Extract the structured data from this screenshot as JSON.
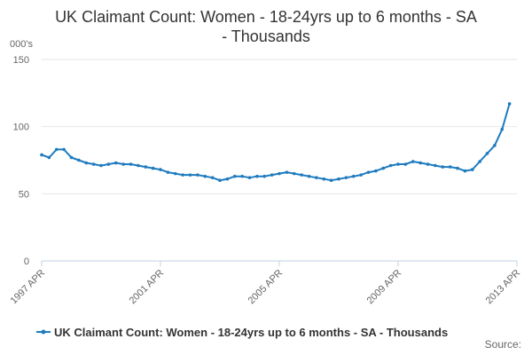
{
  "chart_data": {
    "type": "line",
    "title_line1": "UK Claimant Count: Women - 18-24yrs up to 6 months - SA",
    "title_line2": "- Thousands",
    "ylabel": "000's",
    "xlabel": "",
    "x_tick_labels": [
      "1997 APR",
      "2001 APR",
      "2005 APR",
      "2009 APR",
      "2013 APR"
    ],
    "y_tick_labels": [
      "0",
      "50",
      "100",
      "150"
    ],
    "ylim": [
      0,
      150
    ],
    "y_ticks": [
      0,
      50,
      100,
      150
    ],
    "x_range": [
      "1997-04",
      "2013-04"
    ],
    "grid": "horizontal",
    "legend_position": "bottom",
    "source_label": "Source:",
    "series": [
      {
        "name": "UK Claimant Count: Women - 18-24yrs up to 6 months - SA - Thousands",
        "color": "#1f7bbf",
        "points": [
          [
            "1997-04",
            79
          ],
          [
            "1997-07",
            77
          ],
          [
            "1997-10",
            83
          ],
          [
            "1998-01",
            83
          ],
          [
            "1998-04",
            77
          ],
          [
            "1998-07",
            75
          ],
          [
            "1998-10",
            73
          ],
          [
            "1999-01",
            72
          ],
          [
            "1999-04",
            71
          ],
          [
            "1999-07",
            72
          ],
          [
            "1999-10",
            73
          ],
          [
            "2000-01",
            72
          ],
          [
            "2000-04",
            72
          ],
          [
            "2000-07",
            71
          ],
          [
            "2000-10",
            70
          ],
          [
            "2001-01",
            69
          ],
          [
            "2001-04",
            68
          ],
          [
            "2001-07",
            66
          ],
          [
            "2001-10",
            65
          ],
          [
            "2002-01",
            64
          ],
          [
            "2002-04",
            64
          ],
          [
            "2002-07",
            64
          ],
          [
            "2002-10",
            63
          ],
          [
            "2003-01",
            62
          ],
          [
            "2003-04",
            60
          ],
          [
            "2003-07",
            61
          ],
          [
            "2003-10",
            63
          ],
          [
            "2004-01",
            63
          ],
          [
            "2004-04",
            62
          ],
          [
            "2004-07",
            63
          ],
          [
            "2004-10",
            63
          ],
          [
            "2005-01",
            64
          ],
          [
            "2005-04",
            65
          ],
          [
            "2005-07",
            66
          ],
          [
            "2005-10",
            65
          ],
          [
            "2006-01",
            64
          ],
          [
            "2006-04",
            63
          ],
          [
            "2006-07",
            62
          ],
          [
            "2006-10",
            61
          ],
          [
            "2007-01",
            60
          ],
          [
            "2007-04",
            61
          ],
          [
            "2007-07",
            62
          ],
          [
            "2007-10",
            63
          ],
          [
            "2008-01",
            64
          ],
          [
            "2008-04",
            66
          ],
          [
            "2008-07",
            67
          ],
          [
            "2008-10",
            69
          ],
          [
            "2009-01",
            71
          ],
          [
            "2009-04",
            72
          ],
          [
            "2009-07",
            72
          ],
          [
            "2009-10",
            74
          ],
          [
            "2010-01",
            73
          ],
          [
            "2010-04",
            72
          ],
          [
            "2010-07",
            71
          ],
          [
            "2010-10",
            70
          ],
          [
            "2011-01",
            70
          ],
          [
            "2011-04",
            69
          ],
          [
            "2011-07",
            67
          ],
          [
            "2011-10",
            68
          ],
          [
            "2012-01",
            74
          ],
          [
            "2012-04",
            80
          ],
          [
            "2012-07",
            86
          ],
          [
            "2012-10",
            98
          ],
          [
            "2013-01",
            117
          ]
        ]
      }
    ]
  }
}
